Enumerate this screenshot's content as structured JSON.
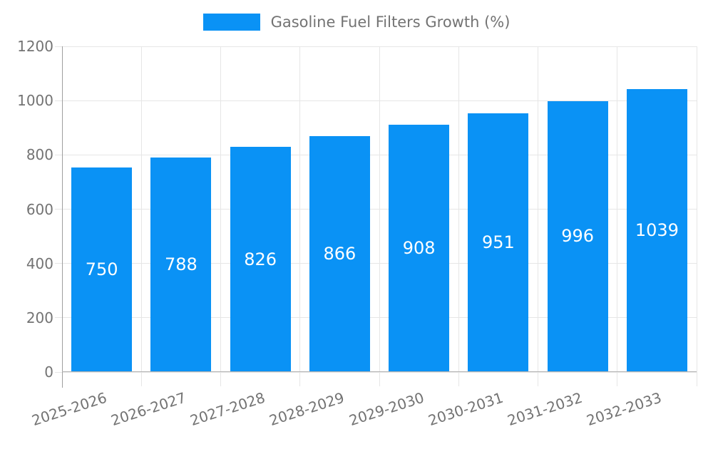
{
  "legend": {
    "label": "Gasoline Fuel Filters Growth (%)"
  },
  "chart_data": {
    "type": "bar",
    "title": "",
    "legend_entries": [
      "Gasoline Fuel Filters Growth (%)"
    ],
    "legend_position": "top-center",
    "categories": [
      "2025-2026",
      "2026-2027",
      "2027-2028",
      "2028-2029",
      "2029-2030",
      "2030-2031",
      "2031-2032",
      "2032-2033"
    ],
    "values": [
      750,
      788,
      826,
      866,
      908,
      951,
      996,
      1039
    ],
    "value_labels": [
      "750",
      "788",
      "826",
      "866",
      "908",
      "951",
      "996",
      "1039"
    ],
    "xlabel": "",
    "ylabel": "",
    "ylim": [
      0,
      1200
    ],
    "yticks": [
      0,
      200,
      400,
      600,
      800,
      1000,
      1200
    ],
    "grid": "horizontal gridlines at y ticks, vertical gridlines at category boundaries",
    "x_tick_rotation_deg": -18,
    "value_label_position": "inside-center"
  },
  "colors": {
    "bar": "#0a92f5",
    "grid": "#e6e6e6",
    "axis": "#9e9e9e",
    "axisBottom": "#b3b3b3",
    "tickText": "#737373",
    "valueText": "#ffffff",
    "background": "#ffffff"
  }
}
